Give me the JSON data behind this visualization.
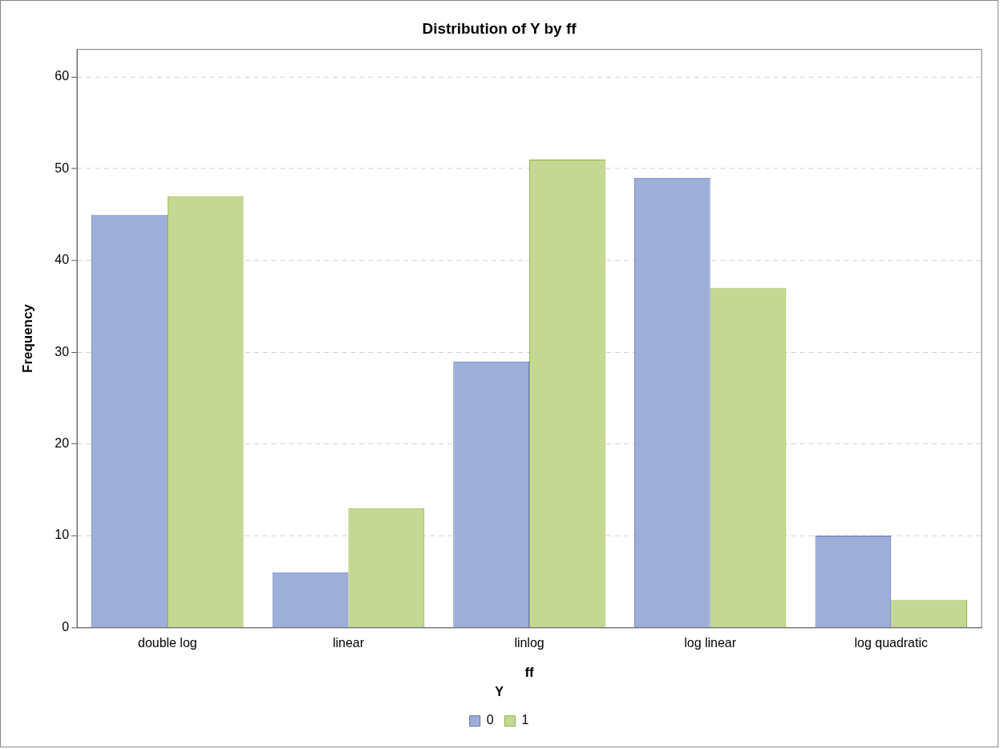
{
  "chart_data": {
    "type": "bar",
    "title": "Distribution of Y by ff",
    "xlabel": "ff",
    "ylabel": "Frequency",
    "legend_title": "Y",
    "categories": [
      "double log",
      "linear",
      "linlog",
      "log linear",
      "log quadratic"
    ],
    "series": [
      {
        "name": "0",
        "color": "#9dafd9",
        "values": [
          45,
          6,
          29,
          49,
          10
        ]
      },
      {
        "name": "1",
        "color": "#c5d893",
        "values": [
          47,
          13,
          51,
          37,
          3
        ]
      }
    ],
    "ylim": [
      0,
      63
    ],
    "yticks": [
      0,
      10,
      20,
      30,
      40,
      50,
      60
    ],
    "grid": "y",
    "legend": "bottom"
  }
}
